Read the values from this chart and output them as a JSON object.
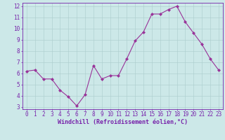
{
  "x": [
    0,
    1,
    2,
    3,
    4,
    5,
    6,
    7,
    8,
    9,
    10,
    11,
    12,
    13,
    14,
    15,
    16,
    17,
    18,
    19,
    20,
    21,
    22,
    23
  ],
  "y": [
    6.2,
    6.3,
    5.5,
    5.5,
    4.5,
    3.9,
    3.1,
    4.1,
    6.7,
    5.5,
    5.8,
    5.8,
    7.3,
    8.9,
    9.7,
    11.3,
    11.3,
    11.7,
    12.0,
    10.6,
    9.6,
    8.6,
    7.3,
    6.3
  ],
  "line_color": "#993399",
  "marker": "D",
  "marker_size": 2,
  "bg_color": "#cce8e8",
  "grid_color": "#aacccc",
  "xlabel": "Windchill (Refroidissement éolien,°C)",
  "xlim": [
    -0.5,
    23.5
  ],
  "ylim": [
    3,
    12
  ],
  "yticks": [
    3,
    4,
    5,
    6,
    7,
    8,
    9,
    10,
    11,
    12
  ],
  "xticks": [
    0,
    1,
    2,
    3,
    4,
    5,
    6,
    7,
    8,
    9,
    10,
    11,
    12,
    13,
    14,
    15,
    16,
    17,
    18,
    19,
    20,
    21,
    22,
    23
  ],
  "tick_color": "#7722aa",
  "label_fontsize": 6,
  "tick_fontsize": 5.5,
  "border_color": "#7722aa",
  "line_width": 0.8
}
